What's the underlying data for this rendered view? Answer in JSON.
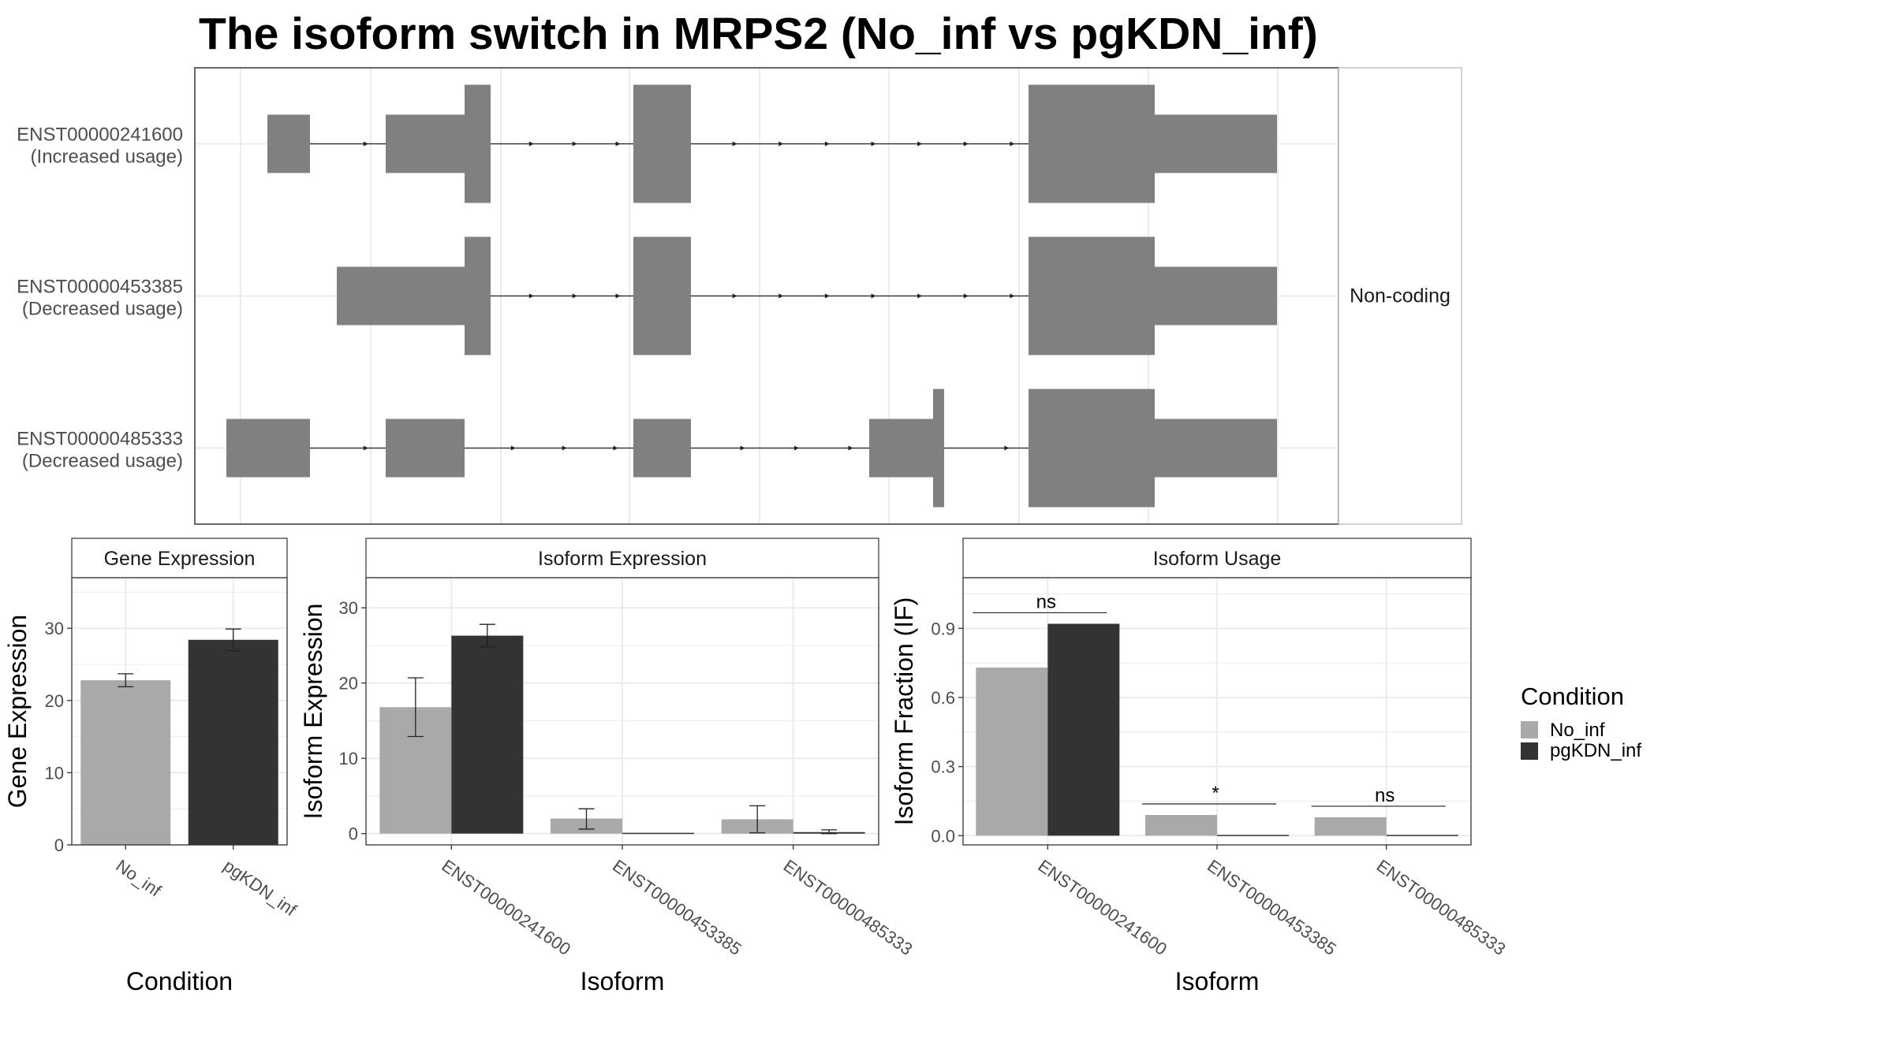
{
  "title": "The isoform switch in MRPS2 (No_inf vs pgKDN_inf)",
  "colors": {
    "no_inf": "#a9a9a9",
    "pgkdn_inf": "#333333",
    "exon": "#808080",
    "grid": "#ebebeb",
    "border": "#333333",
    "strip_border": "#b3b3b3"
  },
  "structure": {
    "type": "transcript_structure",
    "strip_label": "Non-coding",
    "genomic_x_range": [
      0,
      1000
    ],
    "transcripts": [
      {
        "id": "ENST00000241600",
        "label": "(Increased usage)",
        "exons": [
          [
            82,
            136,
            "utr"
          ],
          [
            232,
            332,
            "utr"
          ],
          [
            332,
            365,
            "cds"
          ],
          [
            546,
            619,
            "cds"
          ],
          [
            1047,
            1207,
            "cds"
          ],
          [
            1207,
            1362,
            "utr"
          ]
        ]
      },
      {
        "id": "ENST00000453385",
        "label": "(Decreased usage)",
        "exons": [
          [
            170,
            332,
            "utr"
          ],
          [
            332,
            365,
            "cds"
          ],
          [
            546,
            619,
            "cds"
          ],
          [
            1047,
            1207,
            "cds"
          ],
          [
            1207,
            1362,
            "utr"
          ]
        ]
      },
      {
        "id": "ENST00000485333",
        "label": "(Decreased usage)",
        "exons": [
          [
            30,
            136,
            "utr"
          ],
          [
            232,
            332,
            "utr"
          ],
          [
            546,
            619,
            "utr"
          ],
          [
            845,
            926,
            "utr"
          ],
          [
            926,
            940,
            "cds"
          ],
          [
            1047,
            1207,
            "cds"
          ],
          [
            1207,
            1362,
            "utr"
          ]
        ]
      }
    ]
  },
  "chart_data": [
    {
      "type": "bar",
      "strip": "Gene Expression",
      "xlabel": "Condition",
      "ylabel": "Gene Expression",
      "categories": [
        "No_inf",
        "pgKDN_inf"
      ],
      "values": [
        22.8,
        28.4
      ],
      "errors": [
        [
          21.9,
          23.7
        ],
        [
          26.9,
          29.9
        ]
      ],
      "ylim": [
        0,
        37
      ],
      "yticks": [
        "0",
        "10",
        "20",
        "30"
      ]
    },
    {
      "type": "bar",
      "strip": "Isoform Expression",
      "xlabel": "Isoform",
      "ylabel": "Isoform Expression",
      "categories": [
        "ENST00000241600",
        "ENST00000453385",
        "ENST00000485333"
      ],
      "series": [
        {
          "name": "No_inf",
          "values": [
            16.8,
            2.0,
            1.9
          ],
          "errors": [
            [
              12.9,
              20.7
            ],
            [
              0.6,
              3.3
            ],
            [
              0.1,
              3.7
            ]
          ]
        },
        {
          "name": "pgKDN_inf",
          "values": [
            26.3,
            0.0,
            0.2
          ],
          "errors": [
            [
              24.8,
              27.8
            ],
            [
              0.0,
              0.0
            ],
            [
              0.0,
              0.5
            ]
          ]
        }
      ],
      "ylim": [
        -1.5,
        34
      ],
      "yticks": [
        "0",
        "10",
        "20",
        "30"
      ]
    },
    {
      "type": "bar",
      "strip": "Isoform Usage",
      "xlabel": "Isoform",
      "ylabel": "Isoform Fraction (IF)",
      "categories": [
        "ENST00000241600",
        "ENST00000453385",
        "ENST00000485333"
      ],
      "series": [
        {
          "name": "No_inf",
          "values": [
            0.73,
            0.09,
            0.08
          ]
        },
        {
          "name": "pgKDN_inf",
          "values": [
            0.92,
            0.0,
            0.0
          ]
        }
      ],
      "significance": [
        "ns",
        "*",
        "ns"
      ],
      "ylim": [
        -0.04,
        1.12
      ],
      "yticks": [
        "0.0",
        "0.3",
        "0.6",
        "0.9"
      ]
    }
  ],
  "legend": {
    "title": "Condition",
    "entries": [
      "No_inf",
      "pgKDN_inf"
    ]
  }
}
